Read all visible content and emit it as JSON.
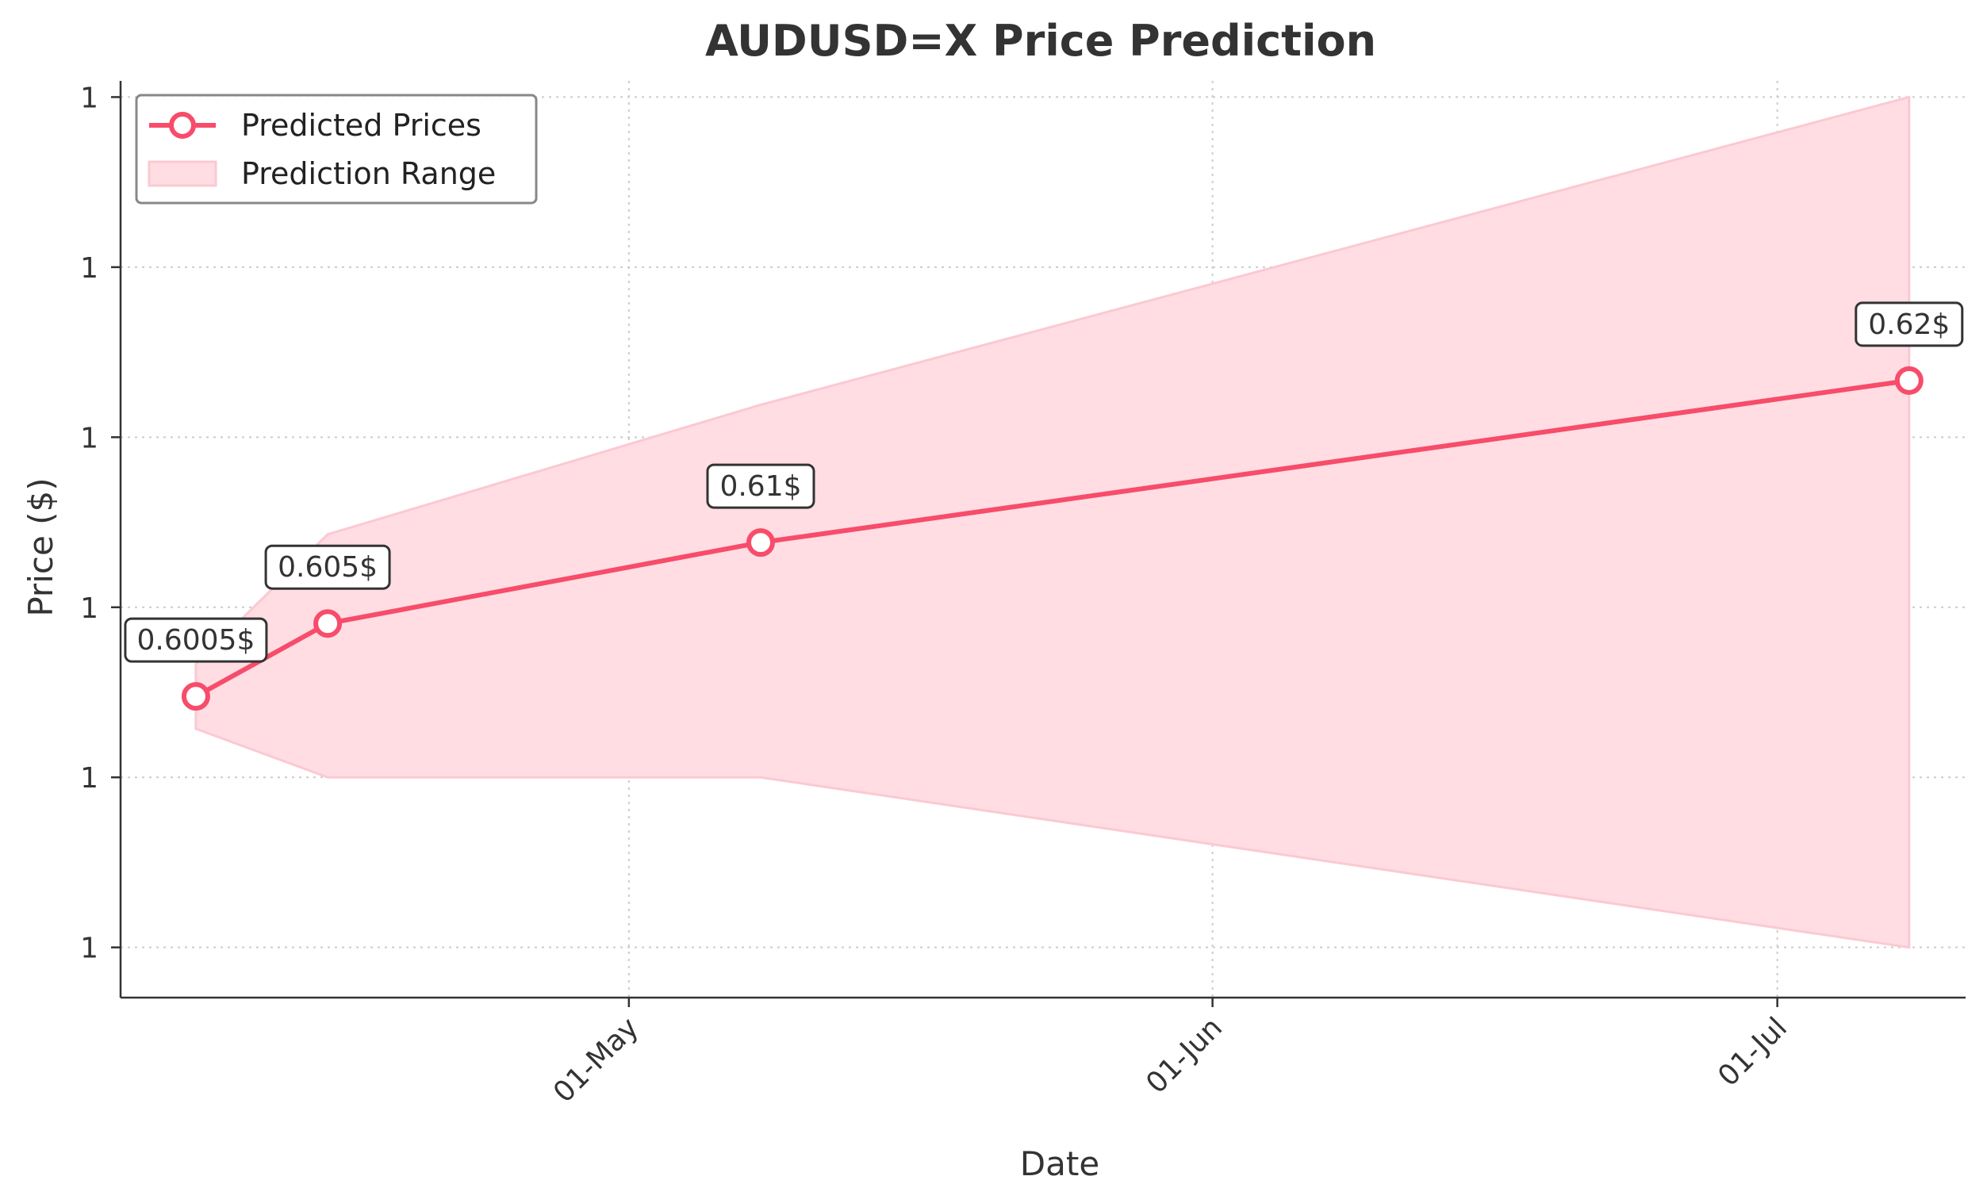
{
  "chart_data": {
    "type": "line",
    "title": "AUDUSD=X Price Prediction",
    "xlabel": "Date",
    "ylabel": "Price ($)",
    "x_type": "date",
    "x_ticks": [
      {
        "date": "2024-05-01",
        "label": "01-May"
      },
      {
        "date": "2024-06-01",
        "label": "01-Jun"
      },
      {
        "date": "2024-07-01",
        "label": "01-Jul"
      }
    ],
    "xlim": [
      "2024-04-04",
      "2024-07-11"
    ],
    "ylim": [
      0.5819,
      0.6385
    ],
    "y_ticks": [
      {
        "value": 0.585,
        "label": "1"
      },
      {
        "value": 0.5955,
        "label": "1"
      },
      {
        "value": 0.606,
        "label": "1"
      },
      {
        "value": 0.6165,
        "label": "1"
      },
      {
        "value": 0.627,
        "label": "1"
      },
      {
        "value": 0.6375,
        "label": "1"
      }
    ],
    "grid": true,
    "legend_position": "top-left",
    "series": [
      {
        "name": "Predicted Prices",
        "type": "line",
        "color": "#f74c6a",
        "points": [
          {
            "x": "2024-04-08",
            "y": 0.6005,
            "label": "0.6005$"
          },
          {
            "x": "2024-04-15",
            "y": 0.605,
            "label": "0.605$"
          },
          {
            "x": "2024-05-08",
            "y": 0.61,
            "label": "0.61$"
          },
          {
            "x": "2024-07-08",
            "y": 0.62,
            "label": "0.62$"
          }
        ]
      },
      {
        "name": "Prediction Range",
        "type": "area",
        "color": "#ffdde3",
        "points": [
          {
            "x": "2024-04-08",
            "lower": 0.5985,
            "upper": 0.6025
          },
          {
            "x": "2024-04-15",
            "lower": 0.5955,
            "upper": 0.6105
          },
          {
            "x": "2024-05-08",
            "lower": 0.5955,
            "upper": 0.6185
          },
          {
            "x": "2024-07-08",
            "lower": 0.585,
            "upper": 0.6375
          }
        ]
      }
    ]
  }
}
